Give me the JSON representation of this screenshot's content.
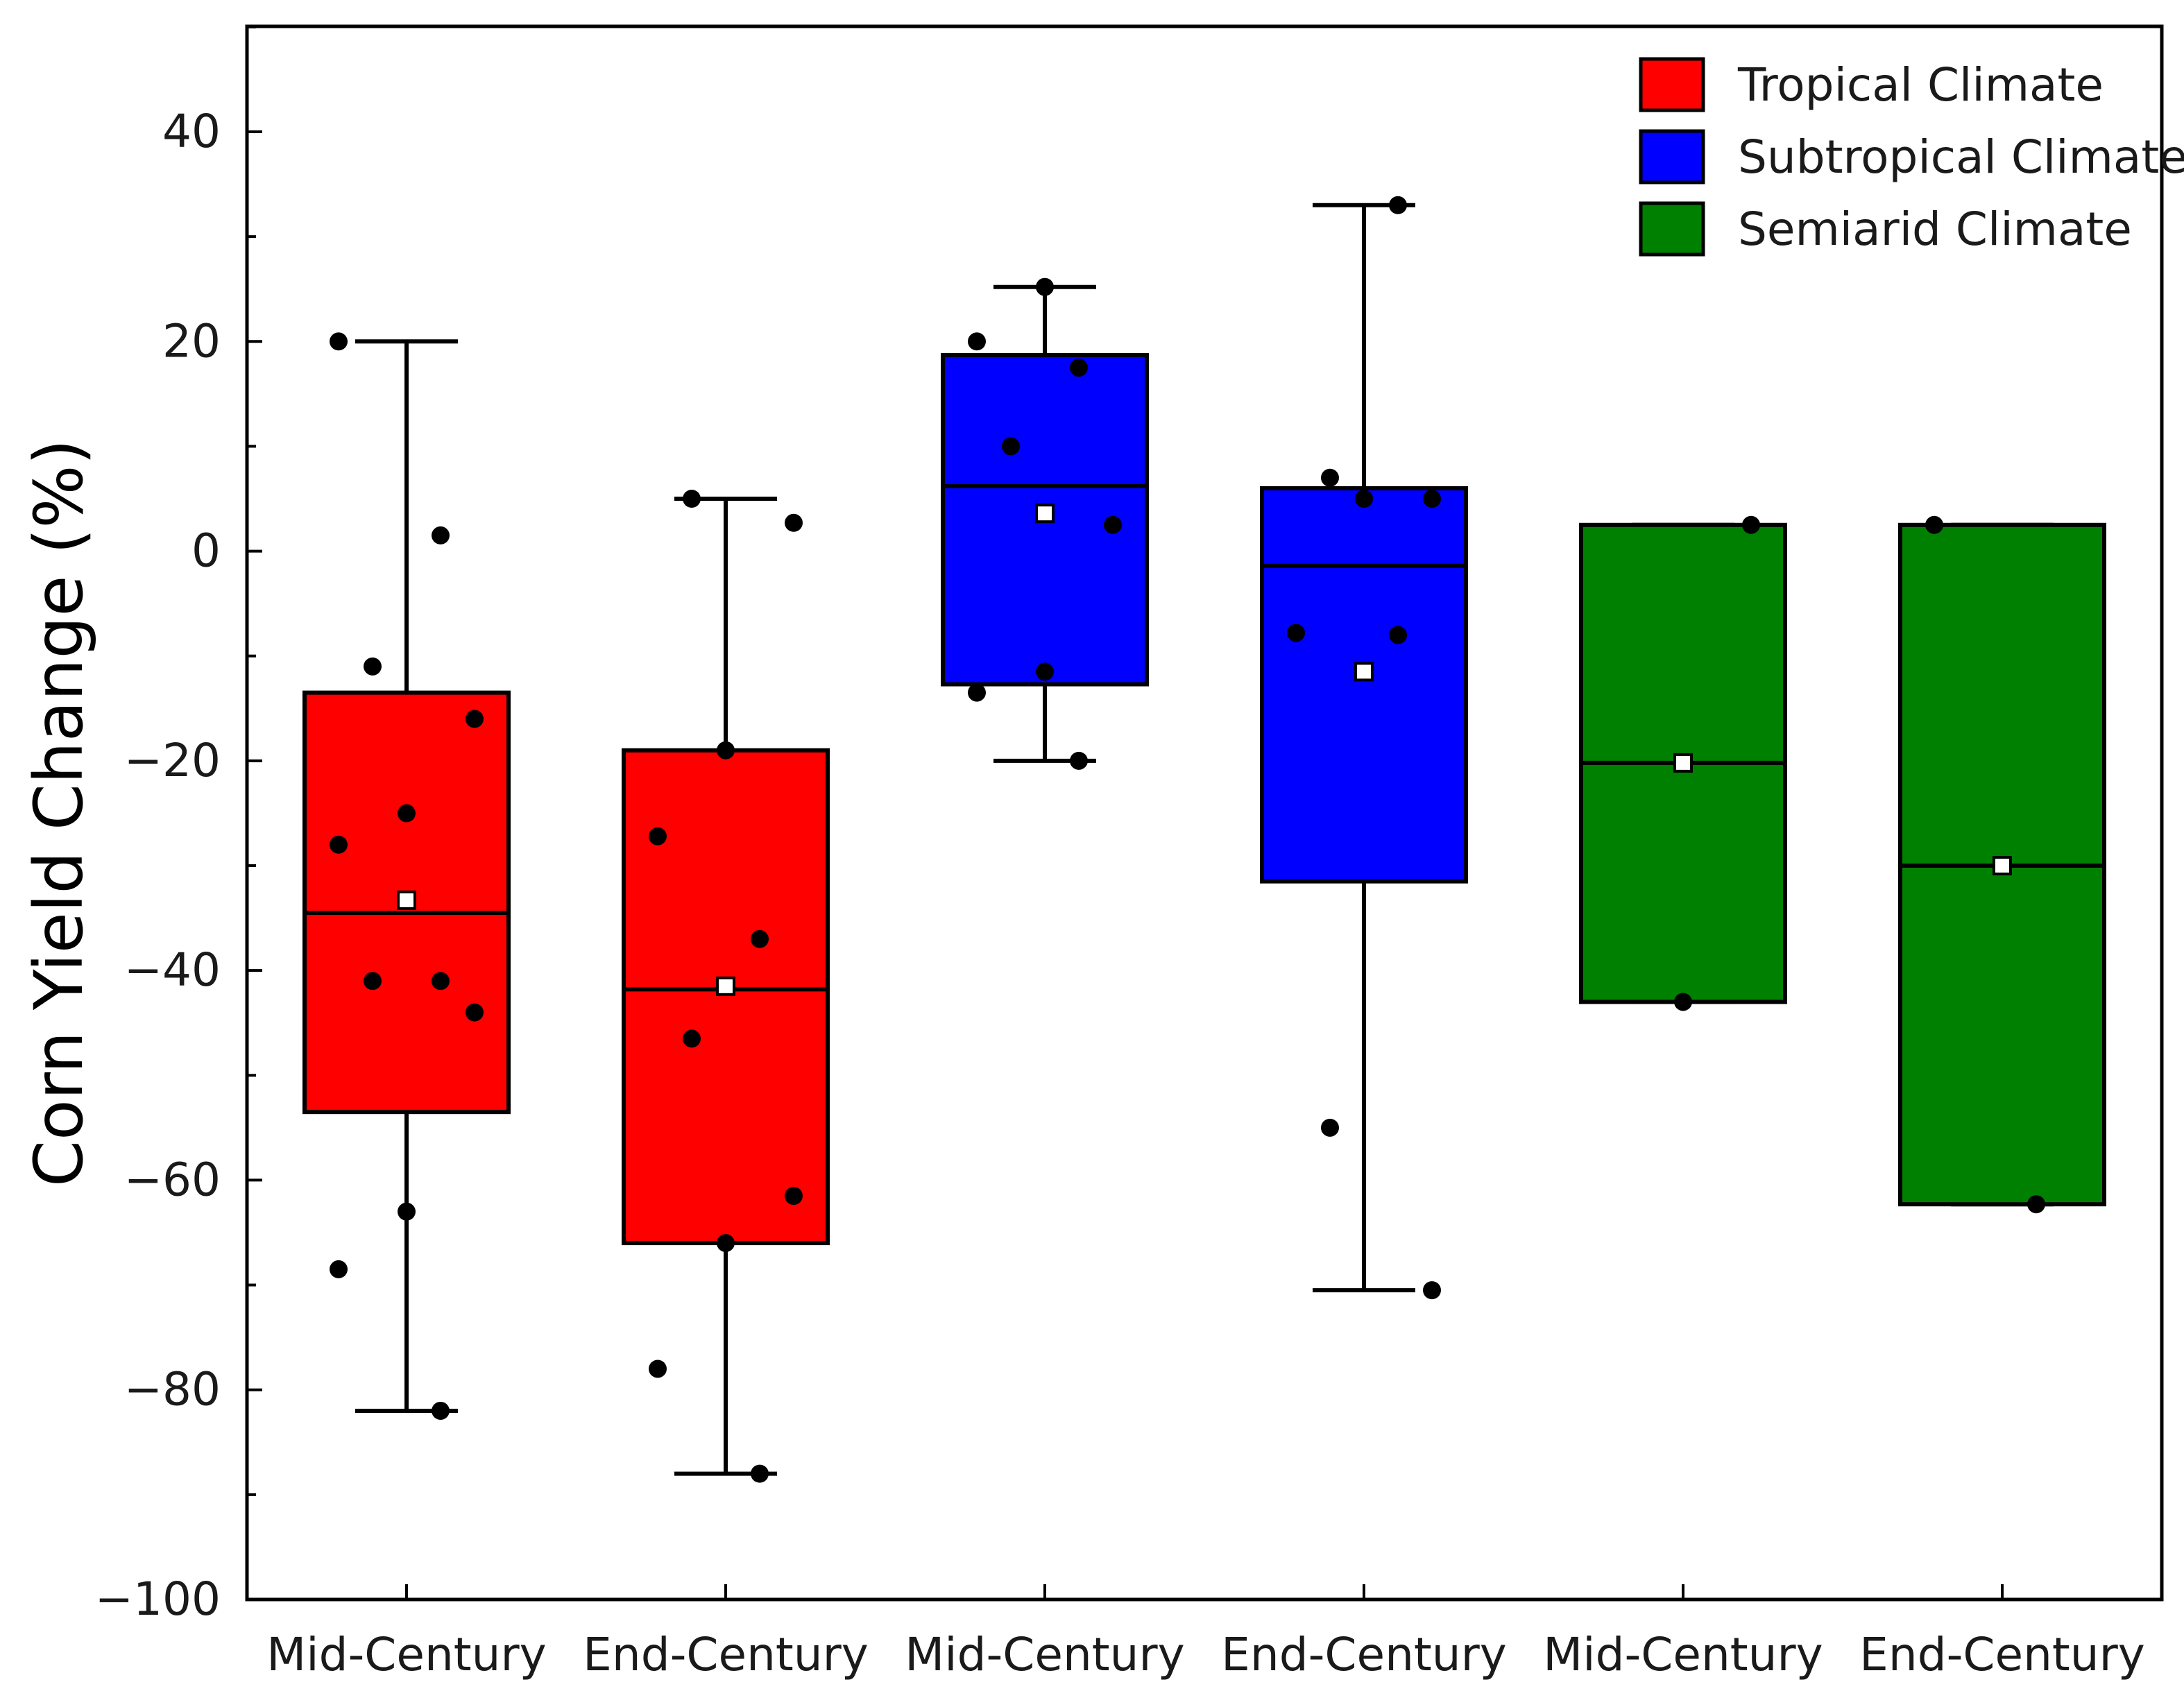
{
  "chart_data": {
    "type": "box",
    "title": "",
    "xlabel": "",
    "ylabel": "Corn Yield Change (%)",
    "ylim": [
      -100,
      50
    ],
    "yticks": [
      -100,
      -80,
      -60,
      -40,
      -20,
      0,
      20,
      40
    ],
    "ytick_labels": [
      "−100",
      "−80",
      "−60",
      "−40",
      "−20",
      "0",
      "20",
      "40"
    ],
    "legend_position": "top-right",
    "legend": [
      {
        "label": "Tropical Climate",
        "color": "#ff0000"
      },
      {
        "label": "Subtropical Climate",
        "color": "#0000ff"
      },
      {
        "label": "Semiarid Climate",
        "color": "#008000"
      }
    ],
    "boxes": [
      {
        "label": "Mid-Century",
        "group": "Tropical Climate",
        "color": "#ff0000",
        "q1": -53.5,
        "median": -34.5,
        "q3": -13.5,
        "mean": -33.3,
        "whisker_low": -82,
        "whisker_high": 20,
        "points": [
          20,
          1.5,
          -11,
          -16,
          -25,
          -28,
          -41,
          -41,
          -44,
          -63,
          -68.5,
          -82
        ]
      },
      {
        "label": "End-Century",
        "group": "Tropical Climate",
        "color": "#ff0000",
        "q1": -66,
        "median": -41.8,
        "q3": -19,
        "mean": -41.5,
        "whisker_low": -88,
        "whisker_high": 5,
        "points": [
          5,
          2.7,
          -19,
          -27.2,
          -37,
          -46.5,
          -61.5,
          -66,
          -78,
          -88
        ]
      },
      {
        "label": "Mid-Century",
        "group": "Subtropical Climate",
        "color": "#0000ff",
        "q1": -12.7,
        "median": 6.2,
        "q3": 18.7,
        "mean": 3.6,
        "whisker_low": -20,
        "whisker_high": 25.2,
        "points": [
          25.2,
          20,
          17.5,
          10,
          2.5,
          -11.5,
          -13.5,
          -20
        ]
      },
      {
        "label": "End-Century",
        "group": "Subtropical Climate",
        "color": "#0000ff",
        "q1": -31.5,
        "median": -1.4,
        "q3": 6,
        "mean": -11.5,
        "whisker_low": -70.5,
        "whisker_high": 33,
        "points": [
          33,
          7,
          5,
          5,
          -7.8,
          -8,
          -55,
          -70.5
        ]
      },
      {
        "label": "Mid-Century",
        "group": "Semiarid Climate",
        "color": "#008000",
        "q1": -43,
        "median": -20.2,
        "q3": 2.5,
        "mean": -20.2,
        "whisker_low": -43,
        "whisker_high": 2.5,
        "points": [
          2.5,
          -43
        ]
      },
      {
        "label": "End-Century",
        "group": "Semiarid Climate",
        "color": "#008000",
        "q1": -62.3,
        "median": -30,
        "q3": 2.5,
        "mean": -30,
        "whisker_low": -62.3,
        "whisker_high": 2.5,
        "points": [
          2.5,
          -62.3
        ]
      }
    ]
  }
}
